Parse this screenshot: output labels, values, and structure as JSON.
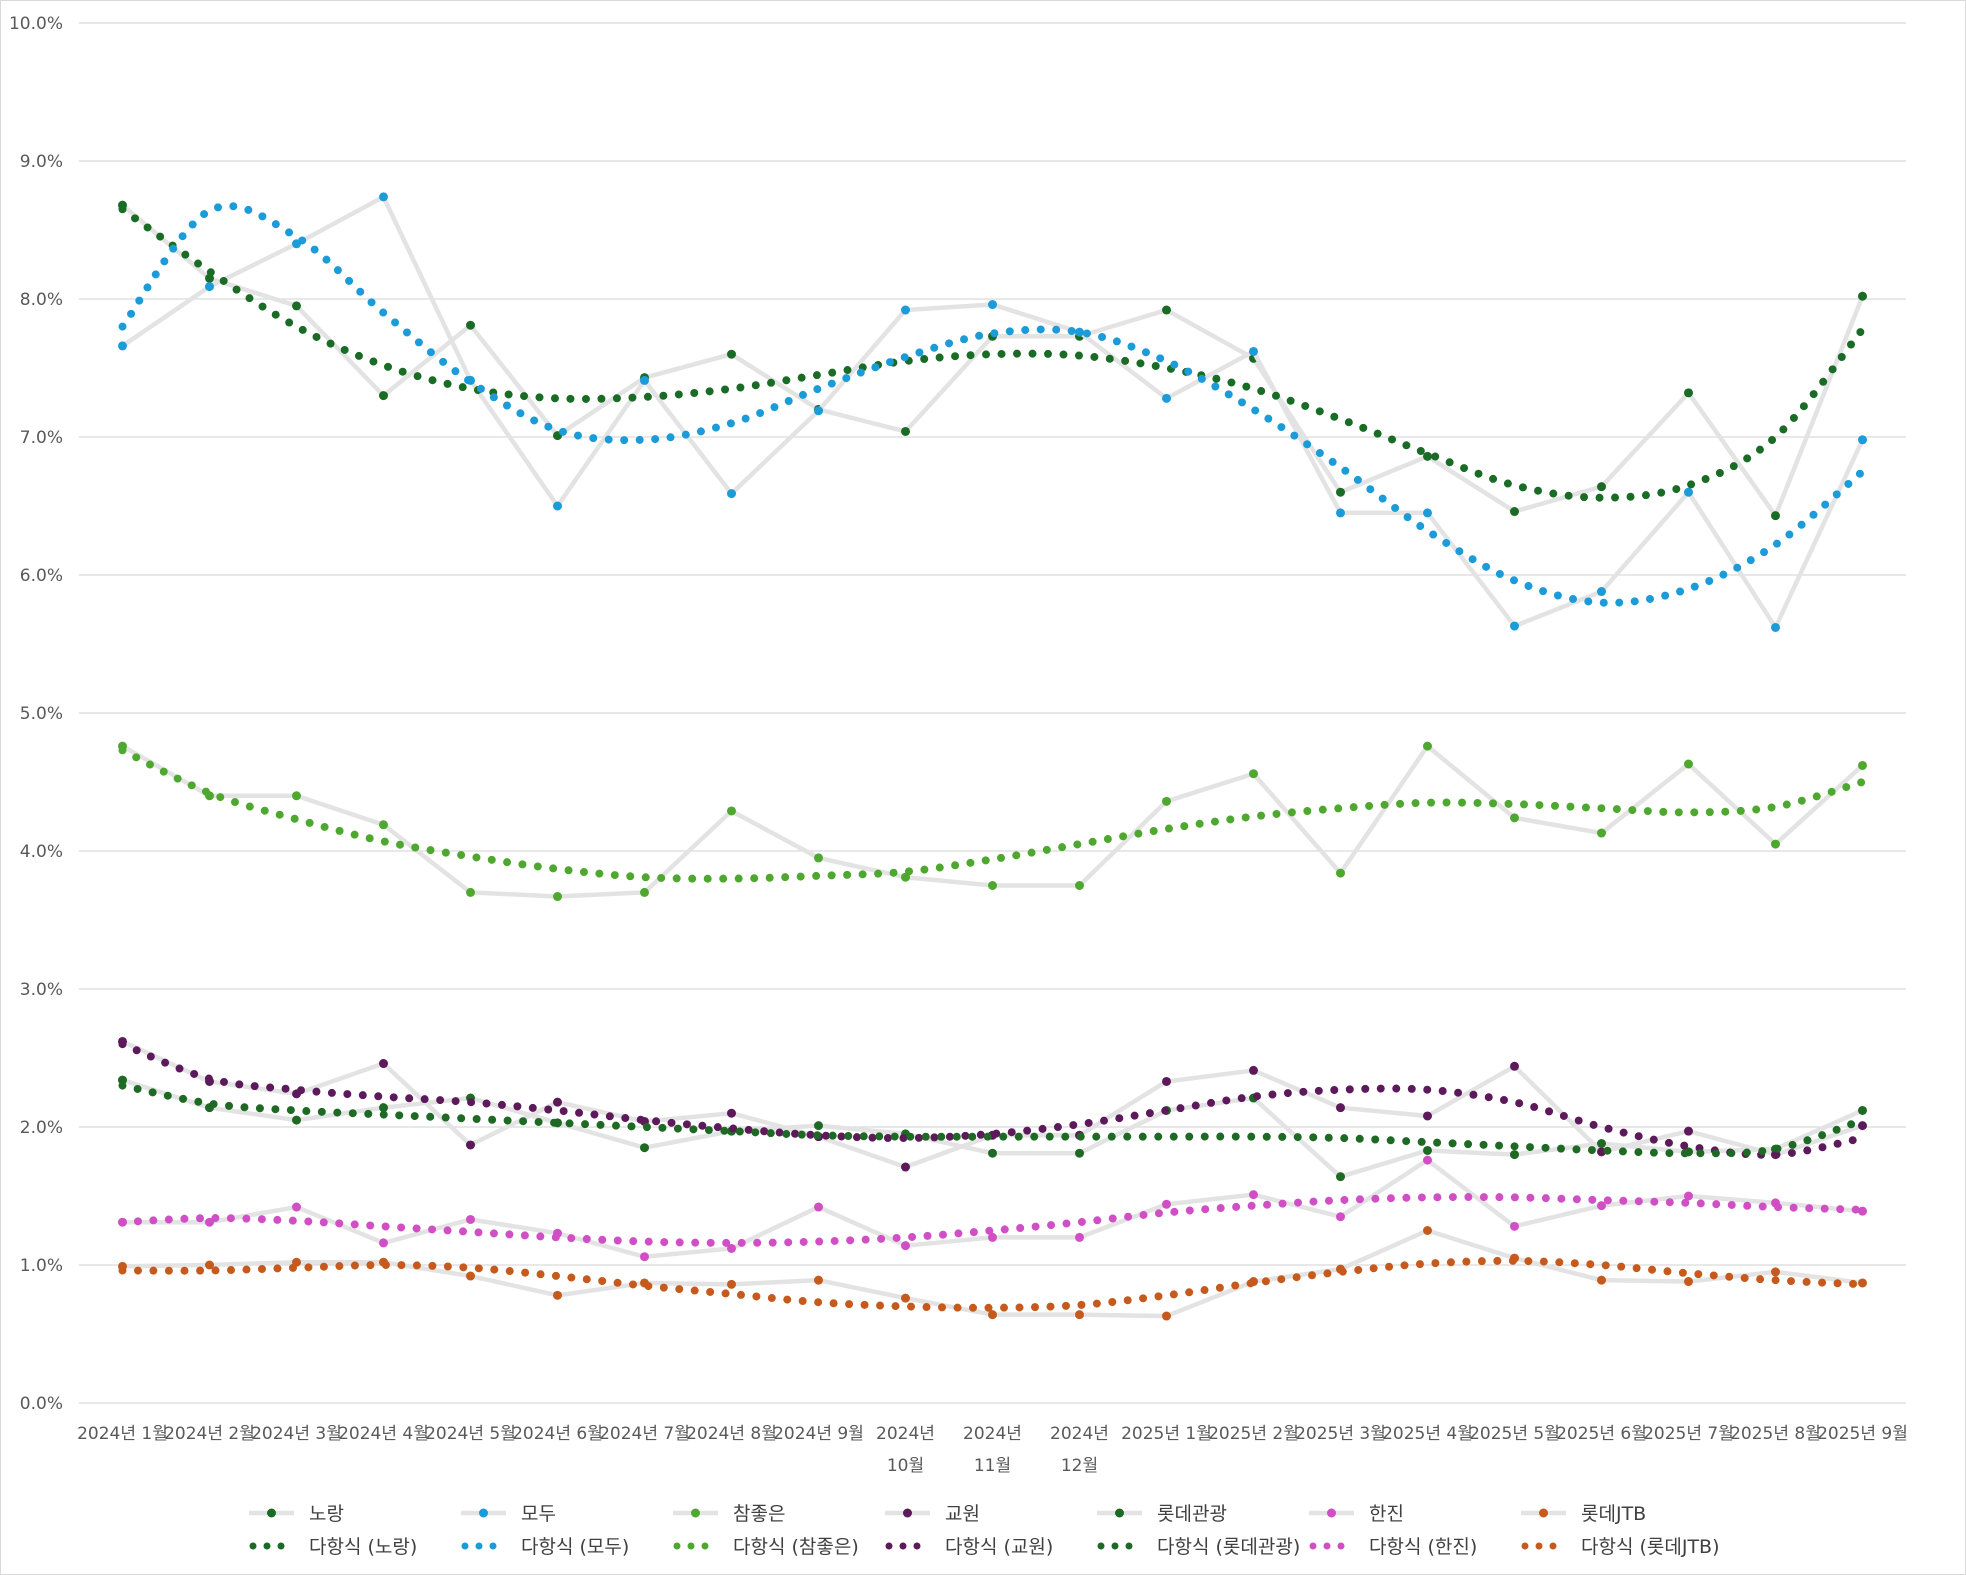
{
  "chart_data": {
    "type": "line",
    "title": "",
    "xlabel": "",
    "ylabel": "",
    "ylim": [
      0,
      10
    ],
    "y_ticks": [
      "0.0%",
      "1.0%",
      "2.0%",
      "3.0%",
      "4.0%",
      "5.0%",
      "6.0%",
      "7.0%",
      "8.0%",
      "9.0%",
      "10.0%"
    ],
    "grid": true,
    "legend_position": "bottom",
    "categories": [
      [
        "2024년 1월"
      ],
      [
        "2024년 2월"
      ],
      [
        "2024년 3월"
      ],
      [
        "2024년 4월"
      ],
      [
        "2024년 5월"
      ],
      [
        "2024년 6월"
      ],
      [
        "2024년 7월"
      ],
      [
        "2024년 8월"
      ],
      [
        "2024년 9월"
      ],
      [
        "2024년",
        "10월"
      ],
      [
        "2024년",
        "11월"
      ],
      [
        "2024년",
        "12월"
      ],
      [
        "2025년 1월"
      ],
      [
        "2025년 2월"
      ],
      [
        "2025년 3월"
      ],
      [
        "2025년 4월"
      ],
      [
        "2025년 5월"
      ],
      [
        "2025년 6월"
      ],
      [
        "2025년 7월"
      ],
      [
        "2025년 8월"
      ],
      [
        "2025년 9월"
      ]
    ],
    "series": [
      {
        "name": "노랑",
        "color": "#1a6b26",
        "values": [
          8.68,
          8.15,
          7.95,
          7.3,
          7.81,
          7.01,
          7.43,
          7.6,
          7.2,
          7.04,
          7.73,
          7.73,
          7.92,
          7.57,
          6.6,
          6.86,
          6.46,
          6.64,
          7.32,
          6.43,
          8.02
        ]
      },
      {
        "name": "모두",
        "color": "#1b9bd7",
        "values": [
          7.66,
          8.09,
          8.4,
          8.74,
          7.41,
          6.5,
          7.41,
          6.59,
          7.19,
          7.92,
          7.96,
          7.76,
          7.28,
          7.62,
          6.45,
          6.45,
          5.63,
          5.88,
          6.6,
          5.62,
          6.98
        ]
      },
      {
        "name": "참좋은",
        "color": "#4ea72e",
        "values": [
          4.76,
          4.4,
          4.4,
          4.19,
          3.7,
          3.67,
          3.7,
          4.29,
          3.95,
          3.81,
          3.75,
          3.75,
          4.36,
          4.56,
          3.84,
          4.76,
          4.24,
          4.13,
          4.63,
          4.05,
          4.62
        ]
      },
      {
        "name": "교원",
        "color": "#5c1a5b",
        "values": [
          2.62,
          2.33,
          2.24,
          2.46,
          1.87,
          2.18,
          2.04,
          2.1,
          1.93,
          1.71,
          1.94,
          1.94,
          2.33,
          2.41,
          2.14,
          2.08,
          2.44,
          1.82,
          1.97,
          1.8,
          2.01
        ]
      },
      {
        "name": "롯데관광",
        "color": "#1e6a25",
        "values": [
          2.34,
          2.14,
          2.05,
          2.14,
          2.21,
          2.03,
          1.85,
          1.97,
          2.01,
          1.95,
          1.81,
          1.81,
          2.12,
          2.21,
          1.64,
          1.83,
          1.8,
          1.88,
          1.82,
          1.84,
          2.12
        ]
      },
      {
        "name": "한진",
        "color": "#d04fc5",
        "values": [
          1.31,
          1.31,
          1.42,
          1.16,
          1.33,
          1.23,
          1.06,
          1.12,
          1.42,
          1.14,
          1.2,
          1.2,
          1.44,
          1.51,
          1.35,
          1.76,
          1.28,
          1.43,
          1.5,
          1.45,
          1.39
        ]
      },
      {
        "name": "롯데JTB",
        "color": "#c65a1d",
        "values": [
          0.99,
          1.0,
          1.02,
          1.02,
          0.92,
          0.78,
          0.87,
          0.86,
          0.89,
          0.76,
          0.64,
          0.64,
          0.63,
          0.88,
          0.97,
          1.25,
          1.05,
          0.89,
          0.88,
          0.95,
          0.87
        ]
      }
    ],
    "trendlines": [
      {
        "name": "다항식 (노랑)",
        "color": "#1a6b26",
        "values": [
          8.65,
          8.2,
          7.8,
          7.52,
          7.35,
          7.28,
          7.29,
          7.35,
          7.45,
          7.55,
          7.6,
          7.59,
          7.5,
          7.35,
          7.13,
          6.88,
          6.65,
          6.56,
          6.65,
          7.0,
          7.78
        ]
      },
      {
        "name": "다항식 (모두)",
        "color": "#1b9bd7",
        "values": [
          7.8,
          8.64,
          8.45,
          7.9,
          7.4,
          7.05,
          6.98,
          7.1,
          7.35,
          7.58,
          7.75,
          7.76,
          7.55,
          7.2,
          6.78,
          6.32,
          5.96,
          5.8,
          5.9,
          6.22,
          6.75
        ]
      },
      {
        "name": "다항식 (참좋은)",
        "color": "#4ea72e",
        "values": [
          4.73,
          4.42,
          4.23,
          4.07,
          3.96,
          3.87,
          3.81,
          3.8,
          3.82,
          3.85,
          3.94,
          4.05,
          4.16,
          4.25,
          4.31,
          4.35,
          4.34,
          4.31,
          4.28,
          4.32,
          4.5
        ]
      },
      {
        "name": "다항식 (교원)",
        "color": "#5c1a5b",
        "values": [
          2.6,
          2.35,
          2.27,
          2.22,
          2.18,
          2.12,
          2.05,
          1.99,
          1.94,
          1.92,
          1.95,
          2.02,
          2.12,
          2.22,
          2.27,
          2.27,
          2.18,
          2.0,
          1.86,
          1.8,
          1.92
        ]
      },
      {
        "name": "다항식 (롯데관광)",
        "color": "#1e6a25",
        "values": [
          2.3,
          2.17,
          2.12,
          2.09,
          2.06,
          2.03,
          2.0,
          1.97,
          1.94,
          1.93,
          1.93,
          1.93,
          1.93,
          1.93,
          1.92,
          1.89,
          1.86,
          1.83,
          1.81,
          1.84,
          2.05
        ]
      },
      {
        "name": "다항식 (한진)",
        "color": "#d04fc5",
        "values": [
          1.31,
          1.34,
          1.32,
          1.28,
          1.24,
          1.2,
          1.17,
          1.16,
          1.17,
          1.2,
          1.25,
          1.31,
          1.38,
          1.43,
          1.47,
          1.49,
          1.49,
          1.47,
          1.45,
          1.42,
          1.4
        ]
      },
      {
        "name": "다항식 (롯데JTB)",
        "color": "#c65a1d",
        "values": [
          0.96,
          0.96,
          0.98,
          1.0,
          0.98,
          0.92,
          0.85,
          0.79,
          0.73,
          0.7,
          0.69,
          0.71,
          0.78,
          0.87,
          0.95,
          1.01,
          1.03,
          1.0,
          0.94,
          0.89,
          0.86
        ]
      }
    ]
  }
}
